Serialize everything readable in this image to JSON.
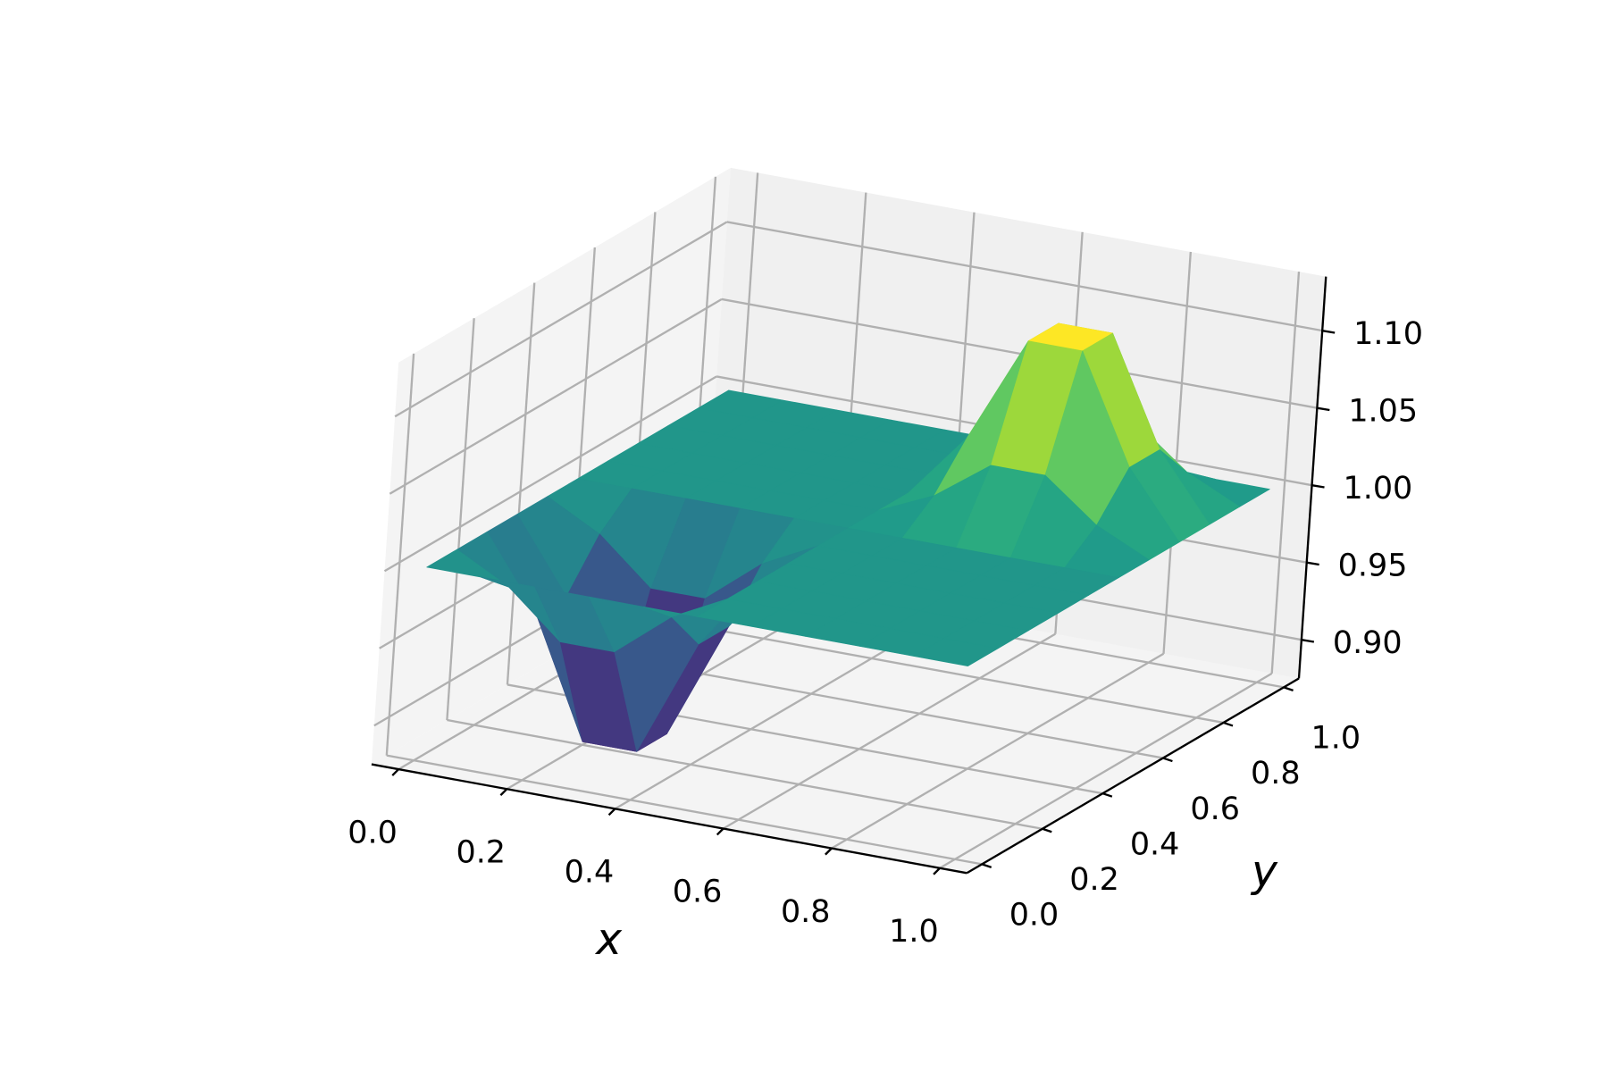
{
  "chart_data": {
    "type": "surface",
    "xlabel": "x",
    "ylabel": "y",
    "x": [
      0,
      0.1,
      0.2,
      0.3,
      0.4,
      0.5,
      0.6,
      0.7,
      0.8,
      0.9,
      1
    ],
    "y": [
      0,
      0.1,
      0.2,
      0.3,
      0.4,
      0.5,
      0.6,
      0.7,
      0.8,
      0.9,
      1
    ],
    "z": [
      [
        1,
        1,
        1,
        1,
        1,
        1,
        1,
        1,
        1,
        1,
        1
      ],
      [
        1,
        0.982,
        0.953,
        0.953,
        0.982,
        1,
        1,
        1,
        1,
        1,
        1
      ],
      [
        1,
        0.953,
        0.877,
        0.877,
        0.953,
        1,
        1,
        1,
        1,
        1,
        1
      ],
      [
        1,
        0.953,
        0.877,
        0.877,
        0.953,
        1,
        1,
        1,
        1,
        1,
        1
      ],
      [
        1,
        0.982,
        0.953,
        0.953,
        0.982,
        1,
        1,
        1,
        1,
        1,
        1
      ],
      [
        1,
        1,
        1,
        1,
        1,
        1,
        1,
        1,
        1,
        1,
        1
      ],
      [
        1,
        1,
        1,
        1,
        1,
        1,
        1.016,
        1.042,
        1.042,
        1.016,
        1
      ],
      [
        1,
        1,
        1,
        1,
        1,
        1,
        1.042,
        1.111,
        1.111,
        1.042,
        1
      ],
      [
        1,
        1,
        1,
        1,
        1,
        1,
        1.042,
        1.111,
        1.111,
        1.042,
        1
      ],
      [
        1,
        1,
        1,
        1,
        1,
        1,
        1.016,
        1.042,
        1.042,
        1.016,
        1
      ],
      [
        1,
        1,
        1,
        1,
        1,
        1,
        1,
        1,
        1,
        1,
        1
      ]
    ],
    "colormap": "viridis",
    "xlim": [
      -0.05,
      1.05
    ],
    "ylim": [
      -0.05,
      1.05
    ],
    "zlim": [
      0.875,
      1.135
    ],
    "xticks": [
      {
        "value": 0,
        "label": "0.0"
      },
      0.2,
      0.4,
      0.6,
      0.8,
      {
        "value": 1,
        "label": "1.0"
      }
    ],
    "yticks": [
      {
        "value": 0,
        "label": "0.0"
      },
      0.2,
      0.4,
      0.6,
      0.8,
      {
        "value": 1,
        "label": "1.0"
      }
    ],
    "zticks": [
      {
        "value": 0.9,
        "label": "0.90"
      },
      0.95,
      {
        "value": 1,
        "label": "1.00"
      },
      1.05,
      {
        "value": 1.1,
        "label": "1.10"
      }
    ],
    "grid": true
  }
}
